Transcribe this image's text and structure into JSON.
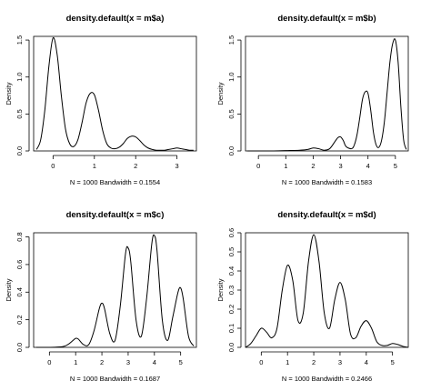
{
  "chart_data": [
    {
      "type": "line",
      "title": "density.default(x = m$a)",
      "xlabel": "N = 1000   Bandwidth = 0.1554",
      "ylabel": "Density",
      "xlim": [
        -0.47,
        3.47
      ],
      "ylim": [
        0,
        1.55
      ],
      "xticks": [
        0,
        1,
        2,
        3
      ],
      "yticks": [
        0.0,
        0.5,
        1.0,
        1.5
      ],
      "ytick_labels": [
        "0.0",
        "0.5",
        "1.0",
        "1.5"
      ],
      "x": [
        -0.4,
        -0.3,
        -0.2,
        -0.1,
        0.0,
        0.1,
        0.2,
        0.3,
        0.4,
        0.5,
        0.6,
        0.7,
        0.8,
        0.9,
        1.0,
        1.1,
        1.2,
        1.3,
        1.4,
        1.5,
        1.6,
        1.7,
        1.8,
        1.9,
        2.0,
        2.1,
        2.2,
        2.3,
        2.4,
        2.5,
        2.6,
        2.7,
        2.8,
        2.9,
        3.0,
        3.1,
        3.2,
        3.3,
        3.4
      ],
      "y": [
        0.02,
        0.15,
        0.55,
        1.15,
        1.53,
        1.3,
        0.75,
        0.3,
        0.1,
        0.06,
        0.15,
        0.38,
        0.65,
        0.78,
        0.76,
        0.55,
        0.28,
        0.1,
        0.04,
        0.03,
        0.05,
        0.1,
        0.17,
        0.2,
        0.19,
        0.14,
        0.08,
        0.04,
        0.02,
        0.01,
        0.01,
        0.01,
        0.02,
        0.03,
        0.04,
        0.03,
        0.02,
        0.01,
        0.01
      ]
    },
    {
      "type": "line",
      "title": "density.default(x = m$b)",
      "xlabel": "N = 1000   Bandwidth = 0.1583",
      "ylabel": "Density",
      "xlim": [
        -0.47,
        5.47
      ],
      "ylim": [
        0,
        1.55
      ],
      "xticks": [
        0,
        1,
        2,
        3,
        4,
        5
      ],
      "yticks": [
        0.0,
        0.5,
        1.0,
        1.5
      ],
      "ytick_labels": [
        "0.0",
        "0.5",
        "1.0",
        "1.5"
      ],
      "x": [
        -0.4,
        0.0,
        0.5,
        1.0,
        1.5,
        1.8,
        2.0,
        2.2,
        2.4,
        2.6,
        2.8,
        2.9,
        3.0,
        3.1,
        3.2,
        3.4,
        3.5,
        3.6,
        3.7,
        3.8,
        3.9,
        4.0,
        4.1,
        4.2,
        4.3,
        4.4,
        4.5,
        4.6,
        4.7,
        4.8,
        4.9,
        5.0,
        5.1,
        5.2,
        5.3,
        5.4
      ],
      "y": [
        0.0,
        0.0,
        0.0,
        0.005,
        0.01,
        0.02,
        0.04,
        0.03,
        0.01,
        0.03,
        0.13,
        0.18,
        0.19,
        0.14,
        0.06,
        0.03,
        0.08,
        0.22,
        0.45,
        0.7,
        0.8,
        0.78,
        0.55,
        0.25,
        0.08,
        0.05,
        0.15,
        0.4,
        0.8,
        1.2,
        1.45,
        1.5,
        1.2,
        0.6,
        0.15,
        0.02
      ]
    },
    {
      "type": "line",
      "title": "density.default(x = m$c)",
      "xlabel": "N = 1000   Bandwidth = 0.1687",
      "ylabel": "Density",
      "xlim": [
        -0.6,
        5.6
      ],
      "ylim": [
        0,
        0.83
      ],
      "xticks": [
        0,
        1,
        2,
        3,
        4,
        5
      ],
      "yticks": [
        0.0,
        0.2,
        0.4,
        0.6,
        0.8
      ],
      "ytick_labels": [
        "0.0",
        "0.2",
        "0.4",
        "0.6",
        "0.8"
      ],
      "x": [
        -0.5,
        0.0,
        0.5,
        0.7,
        0.9,
        1.0,
        1.1,
        1.3,
        1.5,
        1.7,
        1.9,
        2.0,
        2.1,
        2.3,
        2.5,
        2.7,
        2.9,
        3.0,
        3.1,
        3.3,
        3.5,
        3.7,
        3.9,
        4.0,
        4.1,
        4.3,
        4.5,
        4.7,
        4.9,
        5.0,
        5.1,
        5.3,
        5.5
      ],
      "y": [
        0.0,
        0.0,
        0.005,
        0.02,
        0.05,
        0.065,
        0.06,
        0.02,
        0.02,
        0.12,
        0.28,
        0.32,
        0.28,
        0.1,
        0.05,
        0.3,
        0.68,
        0.72,
        0.62,
        0.2,
        0.08,
        0.35,
        0.75,
        0.81,
        0.7,
        0.2,
        0.05,
        0.22,
        0.4,
        0.43,
        0.35,
        0.08,
        0.01
      ]
    },
    {
      "type": "line",
      "title": "density.default(x = m$d)",
      "xlabel": "N = 1000   Bandwidth = 0.2466",
      "ylabel": "Density",
      "xlim": [
        -0.6,
        5.6
      ],
      "ylim": [
        0,
        0.6
      ],
      "xticks": [
        0,
        1,
        2,
        3,
        4,
        5
      ],
      "yticks": [
        0.0,
        0.1,
        0.2,
        0.3,
        0.4,
        0.5,
        0.6
      ],
      "ytick_labels": [
        "0.0",
        "0.1",
        "0.2",
        "0.3",
        "0.4",
        "0.5",
        "0.6"
      ],
      "x": [
        -0.6,
        -0.4,
        -0.2,
        0.0,
        0.2,
        0.4,
        0.6,
        0.8,
        1.0,
        1.2,
        1.4,
        1.6,
        1.8,
        2.0,
        2.2,
        2.4,
        2.6,
        2.8,
        3.0,
        3.2,
        3.4,
        3.6,
        3.8,
        4.0,
        4.2,
        4.4,
        4.6,
        4.8,
        5.0,
        5.2,
        5.4,
        5.6
      ],
      "y": [
        0.0,
        0.02,
        0.06,
        0.1,
        0.08,
        0.05,
        0.1,
        0.3,
        0.43,
        0.35,
        0.14,
        0.18,
        0.45,
        0.59,
        0.45,
        0.18,
        0.1,
        0.25,
        0.34,
        0.25,
        0.07,
        0.05,
        0.11,
        0.14,
        0.1,
        0.03,
        0.01,
        0.01,
        0.02,
        0.015,
        0.005,
        0.0
      ]
    }
  ]
}
